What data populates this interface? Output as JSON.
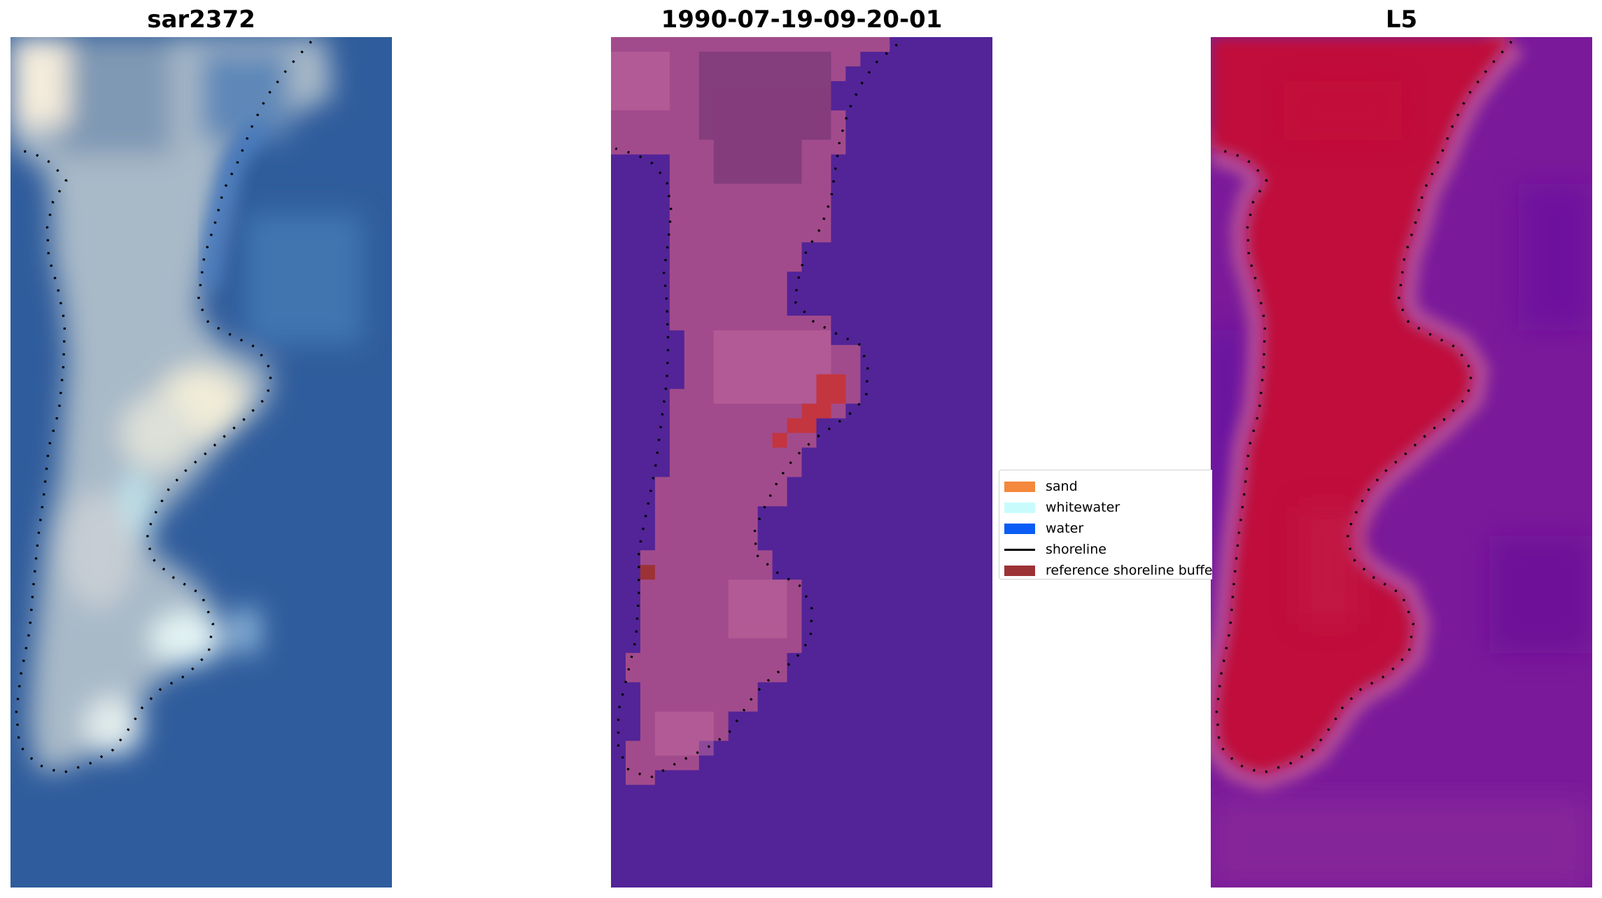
{
  "panels": [
    {
      "title": "sar2372"
    },
    {
      "title": "1990-07-19-09-20-01"
    },
    {
      "title": "L5"
    }
  ],
  "legend": {
    "items": [
      {
        "label": "sand",
        "color": "#f4883c",
        "kind": "patch"
      },
      {
        "label": "whitewater",
        "color": "#c8fcfc",
        "kind": "patch"
      },
      {
        "label": "water",
        "color": "#0a5cf4",
        "kind": "patch"
      },
      {
        "label": "shoreline",
        "color": "#000000",
        "kind": "line"
      },
      {
        "label": "reference shoreline buffer",
        "color": "#9c3236",
        "kind": "patch"
      }
    ]
  },
  "colors": {
    "rgb_water": "#2f5c9c",
    "rgb_sand": "#b8c4cc",
    "classified_water": "#522497",
    "classified_land": "#a24b8c",
    "reference_buffer": "#c3353f",
    "index_land": "#c00d3a",
    "index_water": "#7a1a9a"
  }
}
